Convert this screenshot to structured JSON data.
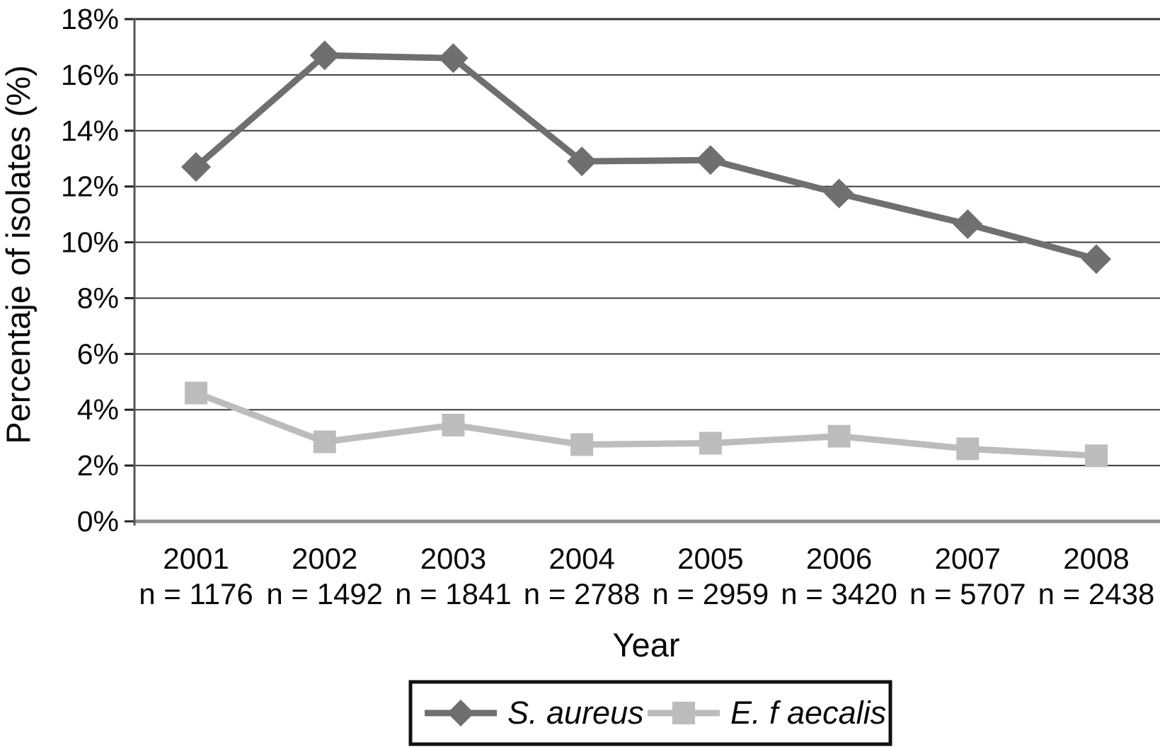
{
  "chart_data": {
    "type": "line",
    "title": "",
    "xlabel": "Year",
    "ylabel": "Percentaje of isolates (%)",
    "ylim": [
      0,
      18
    ],
    "ytick_step": 2,
    "ytick_suffix": "%",
    "grid": true,
    "legend_position": "bottom",
    "x_categories": [
      "2001",
      "2002",
      "2003",
      "2004",
      "2005",
      "2006",
      "2007",
      "2008"
    ],
    "n_labels": [
      "n = 1176",
      "n = 1492",
      "n = 1841",
      "n = 2788",
      "n = 2959",
      "n = 3420",
      "n = 5707",
      "n = 2438"
    ],
    "series": [
      {
        "name": "S. aureus",
        "marker": "diamond",
        "color": "#6f6f6f",
        "values": [
          12.7,
          16.7,
          16.6,
          12.9,
          12.95,
          11.75,
          10.65,
          9.4
        ]
      },
      {
        "name": "E. f aecalis",
        "marker": "square",
        "color": "#bcbcbc",
        "values": [
          4.6,
          2.85,
          3.45,
          2.75,
          2.8,
          3.05,
          2.6,
          2.35
        ]
      }
    ],
    "colors": {
      "grid_line": "#3d3d3d",
      "top_border": "#333333",
      "bottom_axis": "#909090",
      "left_axis": "#555555",
      "tick": "#222222",
      "legend_border": "#111111",
      "text": "#0a0a0a"
    }
  }
}
